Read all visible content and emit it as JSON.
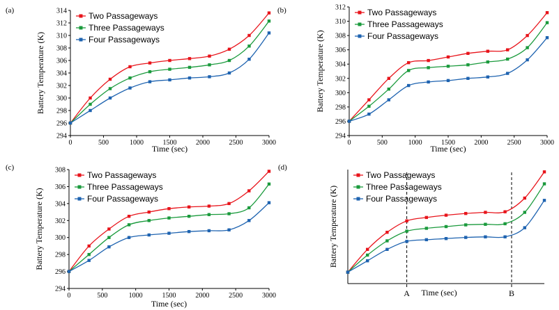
{
  "chart_data": [
    {
      "panel": "(a)",
      "type": "line",
      "xlabel": "Time (sec)",
      "ylabel": "Battery Temperature (K)",
      "xlim": [
        0,
        3000
      ],
      "ylim": [
        294,
        314
      ],
      "yticks": [
        294,
        296,
        298,
        300,
        302,
        304,
        306,
        308,
        310,
        312,
        314
      ],
      "xticks": [
        0,
        500,
        1000,
        1500,
        2000,
        2500,
        3000
      ],
      "x": [
        0,
        300,
        600,
        900,
        1200,
        1500,
        1800,
        2100,
        2400,
        2700,
        3000
      ],
      "series": [
        {
          "name": "Two Passageways",
          "color": "#e8141b",
          "values": [
            296,
            300.0,
            303.0,
            305.0,
            305.6,
            306.0,
            306.3,
            306.7,
            307.8,
            310.0,
            313.6
          ]
        },
        {
          "name": "Three Passageways",
          "color": "#1a9a3c",
          "values": [
            296,
            299.0,
            301.5,
            303.2,
            304.2,
            304.6,
            304.9,
            305.3,
            306.0,
            308.3,
            312.3
          ]
        },
        {
          "name": "Four Passageways",
          "color": "#1e63b0",
          "values": [
            296,
            298.0,
            300.0,
            301.6,
            302.6,
            302.9,
            303.2,
            303.4,
            304.0,
            306.2,
            310.4
          ]
        }
      ]
    },
    {
      "panel": "(b)",
      "type": "line",
      "xlabel": "Time (sec)",
      "ylabel": "Battery Temperature (K)",
      "xlim": [
        0,
        3000
      ],
      "ylim": [
        294,
        312
      ],
      "yticks": [
        294,
        296,
        298,
        300,
        302,
        304,
        306,
        308,
        310,
        312
      ],
      "xticks": [
        0,
        500,
        1000,
        1500,
        2000,
        2500,
        3000
      ],
      "x": [
        0,
        300,
        600,
        900,
        1200,
        1500,
        1800,
        2100,
        2400,
        2700,
        3000
      ],
      "series": [
        {
          "name": "Two Passageways",
          "color": "#e8141b",
          "values": [
            296,
            299.0,
            302.0,
            304.2,
            304.5,
            305.0,
            305.5,
            305.8,
            306.0,
            308.0,
            311.2
          ]
        },
        {
          "name": "Three Passageways",
          "color": "#1a9a3c",
          "values": [
            296,
            298.1,
            300.5,
            303.1,
            303.5,
            303.7,
            303.9,
            304.3,
            304.7,
            306.3,
            309.8
          ]
        },
        {
          "name": "Four Passageways",
          "color": "#1e63b0",
          "values": [
            296,
            297.0,
            299.0,
            301.0,
            301.5,
            301.7,
            302.0,
            302.2,
            302.7,
            304.6,
            307.7
          ]
        }
      ]
    },
    {
      "panel": "(c)",
      "type": "line",
      "xlabel": "Time (sec)",
      "ylabel": "Battery Temperature (K)",
      "xlim": [
        0,
        3000
      ],
      "ylim": [
        294,
        308
      ],
      "yticks": [
        294,
        296,
        298,
        300,
        302,
        304,
        306,
        308
      ],
      "xticks": [
        0,
        500,
        1000,
        1500,
        2000,
        2500,
        3000
      ],
      "x": [
        0,
        300,
        600,
        900,
        1200,
        1500,
        1800,
        2100,
        2400,
        2700,
        3000
      ],
      "series": [
        {
          "name": "Two Passageways",
          "color": "#e8141b",
          "values": [
            296,
            299.0,
            301.0,
            302.5,
            303.0,
            303.4,
            303.6,
            303.7,
            304.0,
            305.5,
            307.8
          ]
        },
        {
          "name": "Three Passageways",
          "color": "#1a9a3c",
          "values": [
            296,
            298.0,
            300.0,
            301.5,
            302.0,
            302.3,
            302.5,
            302.7,
            302.8,
            303.5,
            306.3
          ]
        },
        {
          "name": "Four Passageways",
          "color": "#1e63b0",
          "values": [
            296,
            297.3,
            298.9,
            300.0,
            300.3,
            300.5,
            300.7,
            300.8,
            300.9,
            302.0,
            304.1
          ]
        }
      ]
    },
    {
      "panel": "(d)",
      "type": "line",
      "xlabel": "Time (sec)",
      "ylabel": "Battery Temperature (K)",
      "xlim": [
        0,
        3000
      ],
      "ylim": [
        294,
        314
      ],
      "markers_vertical": [
        {
          "label": "A",
          "x": 900
        },
        {
          "label": "B",
          "x": 2500
        }
      ],
      "x": [
        0,
        300,
        600,
        900,
        1200,
        1500,
        1800,
        2100,
        2400,
        2700,
        3000
      ],
      "series": [
        {
          "name": "Two Passageways",
          "color": "#e8141b",
          "values": [
            296,
            300.0,
            303.0,
            305.0,
            305.6,
            306.0,
            306.3,
            306.5,
            306.6,
            309.0,
            313.6
          ]
        },
        {
          "name": "Three Passageways",
          "color": "#1a9a3c",
          "values": [
            296,
            299.0,
            301.5,
            303.2,
            303.7,
            304.0,
            304.3,
            304.4,
            304.5,
            306.5,
            311.5
          ]
        },
        {
          "name": "Four Passageways",
          "color": "#1e63b0",
          "values": [
            296,
            298.0,
            300.0,
            301.4,
            301.7,
            301.9,
            302.1,
            302.2,
            302.2,
            303.8,
            308.6
          ]
        }
      ]
    }
  ]
}
